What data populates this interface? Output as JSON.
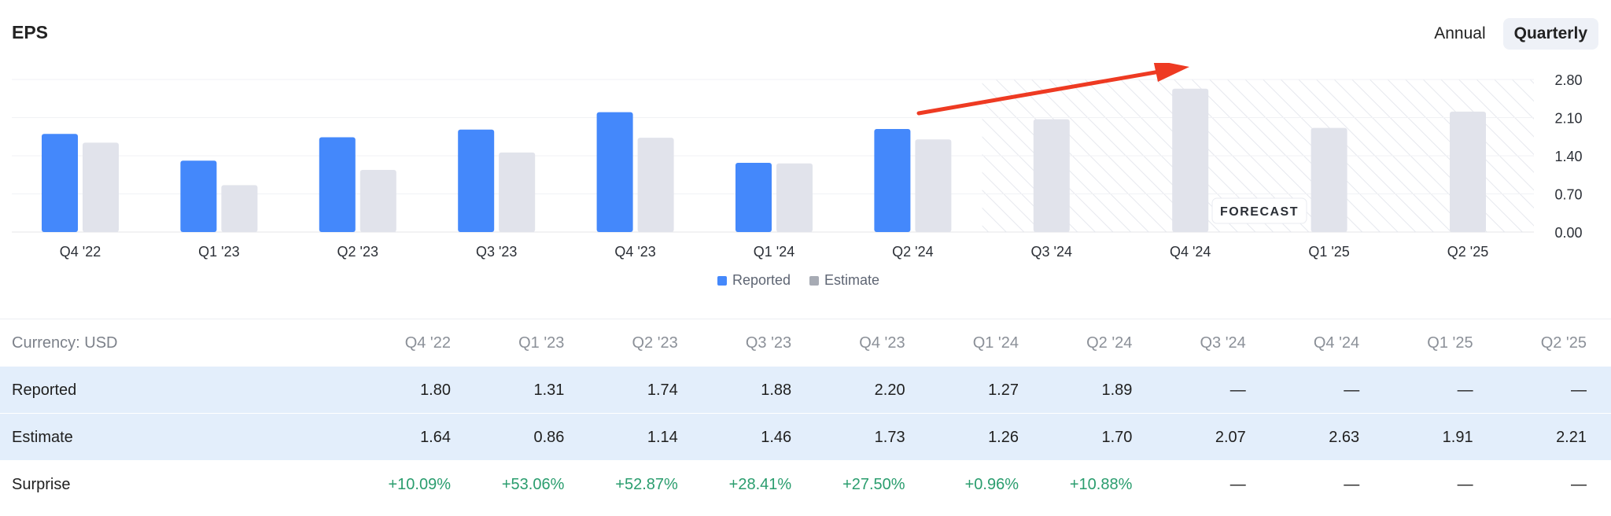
{
  "header": {
    "title": "EPS",
    "toggle": [
      "Annual",
      "Quarterly"
    ],
    "active": "Quarterly"
  },
  "colors": {
    "reported": "#4488fb",
    "estimate": "#e1e3eb",
    "surprise_positive": "#2a9d6e",
    "arrow": "#ee3a22"
  },
  "forecast_label": "FORECAST",
  "legend": [
    "Reported",
    "Estimate"
  ],
  "chart_data": {
    "type": "bar",
    "title": "EPS",
    "categories": [
      "Q4 '22",
      "Q1 '23",
      "Q2 '23",
      "Q3 '23",
      "Q4 '23",
      "Q1 '24",
      "Q2 '24",
      "Q3 '24",
      "Q4 '24",
      "Q1 '25",
      "Q2 '25"
    ],
    "series": [
      {
        "name": "Reported",
        "values": [
          1.8,
          1.31,
          1.74,
          1.88,
          2.2,
          1.27,
          1.89,
          null,
          null,
          null,
          null
        ]
      },
      {
        "name": "Estimate",
        "values": [
          1.64,
          0.86,
          1.14,
          1.46,
          1.73,
          1.26,
          1.7,
          2.07,
          2.63,
          1.91,
          2.21
        ]
      }
    ],
    "yticks": [
      0.0,
      0.7,
      1.4,
      2.1,
      2.8
    ],
    "ytick_labels": [
      "0.00",
      "0.70",
      "1.40",
      "2.10",
      "2.80"
    ],
    "ylim": [
      0,
      2.8
    ],
    "forecast_start": "Q3 '24",
    "grid": true,
    "legend_position": "bottom-center",
    "annotations": [
      "FORECAST"
    ]
  },
  "table": {
    "currency_label": "Currency: USD",
    "columns": [
      "Q4 '22",
      "Q1 '23",
      "Q2 '23",
      "Q3 '23",
      "Q4 '23",
      "Q1 '24",
      "Q2 '24",
      "Q3 '24",
      "Q4 '24",
      "Q1 '25",
      "Q2 '25"
    ],
    "rows": [
      {
        "label": "Reported",
        "values": [
          "1.80",
          "1.31",
          "1.74",
          "1.88",
          "2.20",
          "1.27",
          "1.89",
          "—",
          "—",
          "—",
          "—"
        ]
      },
      {
        "label": "Estimate",
        "values": [
          "1.64",
          "0.86",
          "1.14",
          "1.46",
          "1.73",
          "1.26",
          "1.70",
          "2.07",
          "2.63",
          "1.91",
          "2.21"
        ]
      },
      {
        "label": "Surprise",
        "values": [
          "+10.09%",
          "+53.06%",
          "+52.87%",
          "+28.41%",
          "+27.50%",
          "+0.96%",
          "+10.88%",
          "—",
          "—",
          "—",
          "—"
        ]
      }
    ]
  }
}
